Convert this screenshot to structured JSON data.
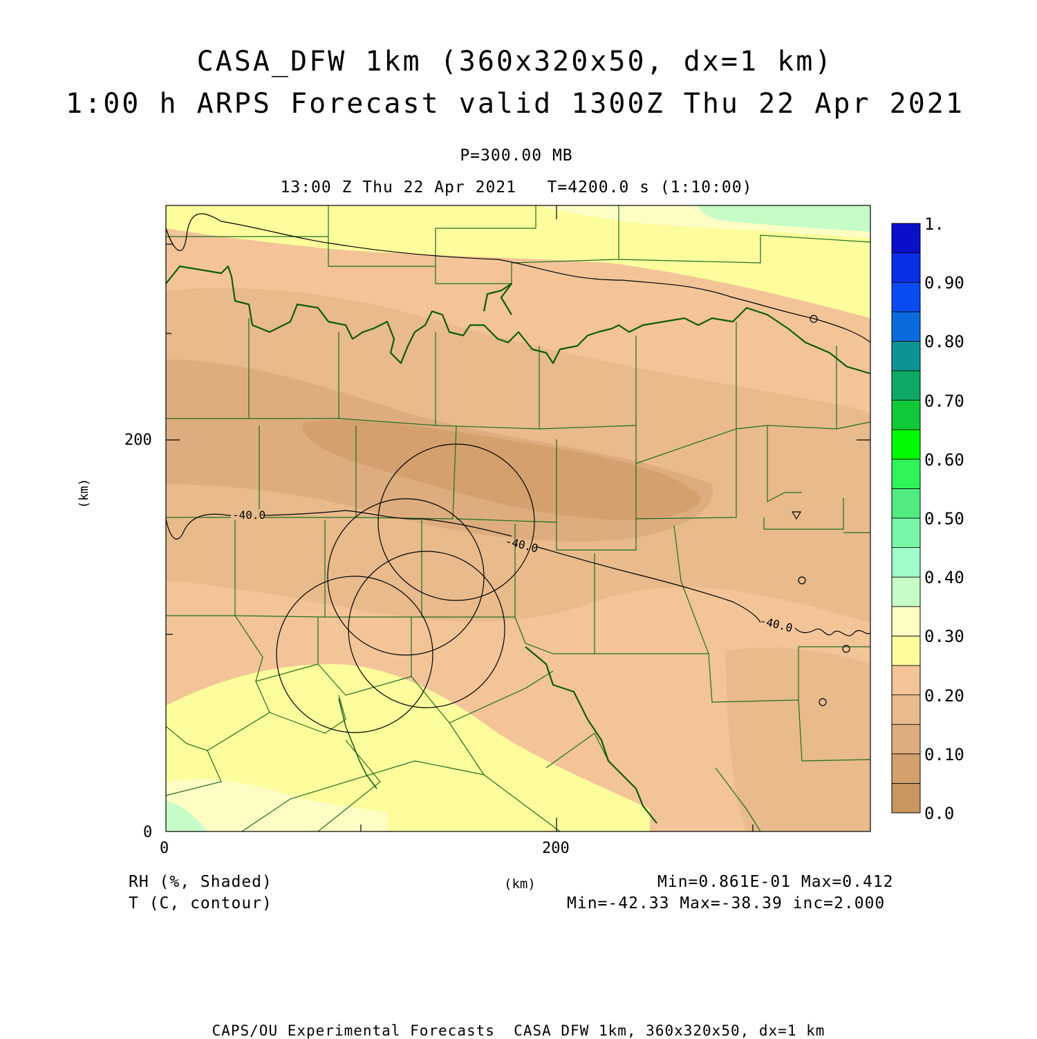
{
  "title": {
    "line1": "CASA_DFW 1km (360x320x50, dx=1 km)",
    "line2": "1:00 h ARPS Forecast valid 1300Z Thu 22 Apr 2021"
  },
  "subtitle": {
    "level": "P=300.00 MB",
    "time": "13:00 Z Thu 22 Apr 2021   T=4200.0 s (1:10:00)"
  },
  "axes": {
    "x_unit": "(km)",
    "y_unit": "(km)",
    "x_ticks": [
      "0",
      "200"
    ],
    "y_ticks": [
      "0",
      "200"
    ],
    "x_range_km": [
      0,
      360
    ],
    "y_range_km": [
      0,
      320
    ]
  },
  "colorbar": {
    "labels": [
      "1.",
      "0.90",
      "0.80",
      "0.70",
      "0.60",
      "0.50",
      "0.40",
      "0.30",
      "0.20",
      "0.10",
      "0.0"
    ],
    "colors_bottom_to_top": [
      "#c8965f",
      "#d3a06e",
      "#ddad7f",
      "#e8ba8c",
      "#f2c498",
      "#fdfd9d",
      "#fdfdc4",
      "#c6fdc6",
      "#9efdc8",
      "#78f7a8",
      "#50ec80",
      "#2ef458",
      "#00fa00",
      "#10c838",
      "#0eaa64",
      "#0b9494",
      "#0a6cdc",
      "#0a4cf0",
      "#0a2ee6",
      "#0a10c8"
    ]
  },
  "contour_labels": [
    "-40.0",
    "-40.0",
    "-40.0"
  ],
  "field_info": {
    "shaded_name": "RH (%, Shaded)",
    "contour_name": "T (C, contour)",
    "shaded_stats": "Min=0.861E-01 Max=0.412",
    "contour_stats": "Min=-42.33 Max=-38.39 inc=2.000"
  },
  "footer": "CAPS/OU Experimental Forecasts  CASA DFW 1km, 360x320x50, dx=1 km",
  "map_colors": {
    "border": "#1e6e1e",
    "river": "#0d5a0d",
    "contour": "#000000"
  }
}
